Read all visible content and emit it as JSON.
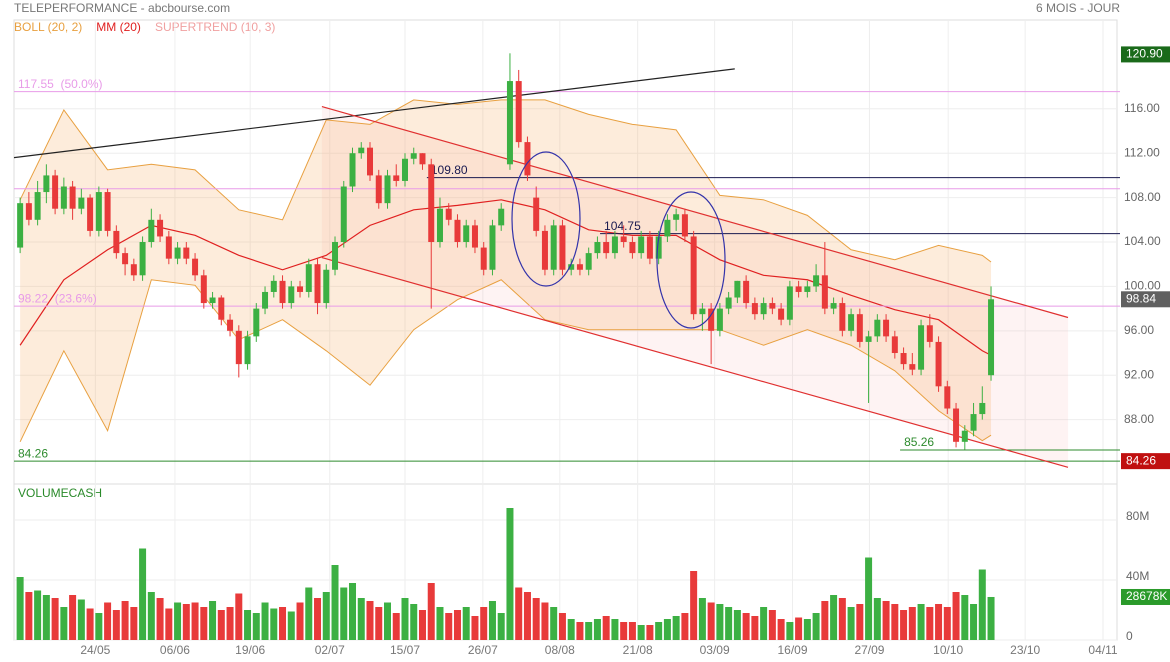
{
  "chart_data": {
    "type": "candlestick",
    "title": "TELEPERFORMANCE - abcbourse.com",
    "subtitle": "6 MOIS - JOUR",
    "indicators": [
      {
        "label": "BOLL (20, 2)",
        "color": "#e8a040"
      },
      {
        "label": "MM (20)",
        "color": "#e02020"
      },
      {
        "label": "SUPERTREND (10, 3)",
        "color": "#f0a0a0"
      }
    ],
    "volume_title": "VOLUMECASH",
    "xlim": [
      -0.7,
      125.4
    ],
    "xticks": [
      {
        "value": 8.6,
        "label": "24/05"
      },
      {
        "value": 17.7,
        "label": "06/06"
      },
      {
        "value": 26.3,
        "label": "19/06"
      },
      {
        "value": 35.4,
        "label": "02/07"
      },
      {
        "value": 44,
        "label": "15/07"
      },
      {
        "value": 52.9,
        "label": "26/07"
      },
      {
        "value": 61.7,
        "label": "08/08"
      },
      {
        "value": 70.6,
        "label": "21/08"
      },
      {
        "value": 79.4,
        "label": "03/09"
      },
      {
        "value": 88.3,
        "label": "16/09"
      },
      {
        "value": 97.1,
        "label": "27/09"
      },
      {
        "value": 106.1,
        "label": "10/10"
      },
      {
        "value": 114.9,
        "label": "23/10"
      },
      {
        "value": 123.8,
        "label": "04/11"
      }
    ],
    "ylim": [
      82.2,
      124
    ],
    "yticks": [
      {
        "value": 88,
        "label": "88.00"
      },
      {
        "value": 92,
        "label": "92.00"
      },
      {
        "value": 96,
        "label": "96.00"
      },
      {
        "value": 100,
        "label": "100.00"
      },
      {
        "value": 104,
        "label": "104.00"
      },
      {
        "value": 108,
        "label": "108.00"
      },
      {
        "value": 112,
        "label": "112.00"
      },
      {
        "value": 116,
        "label": "116.00"
      }
    ],
    "up_color": "#3cb043",
    "down_color": "#e83a3a",
    "ohlc": [
      [
        103.5,
        108,
        103,
        107.5
      ],
      [
        107.5,
        108.5,
        105.5,
        106
      ],
      [
        106,
        109.5,
        105.5,
        108.5
      ],
      [
        108.5,
        111,
        107.5,
        110
      ],
      [
        110,
        110.5,
        106.5,
        107
      ],
      [
        107,
        109.8,
        106.5,
        109
      ],
      [
        109,
        109.5,
        106,
        107
      ],
      [
        107,
        108.8,
        106.5,
        108
      ],
      [
        108,
        108.3,
        104.5,
        105
      ],
      [
        105,
        109,
        104.5,
        108.5
      ],
      [
        108.5,
        108.8,
        104.5,
        105
      ],
      [
        105,
        105.5,
        102.5,
        103
      ],
      [
        103,
        103.5,
        101,
        102
      ],
      [
        102,
        102.5,
        100.5,
        101
      ],
      [
        101,
        104.5,
        100.5,
        104
      ],
      [
        104,
        107,
        103.5,
        106
      ],
      [
        106,
        106.5,
        104,
        104.5
      ],
      [
        104.5,
        105,
        102,
        102.5
      ],
      [
        102.5,
        104,
        102,
        103.5
      ],
      [
        103.5,
        104,
        102,
        102.5
      ],
      [
        102.5,
        103,
        100.5,
        101
      ],
      [
        101,
        101.5,
        98,
        98.5
      ],
      [
        98.5,
        99.5,
        98,
        99
      ],
      [
        99,
        99.2,
        96.5,
        97
      ],
      [
        97,
        97.5,
        95.5,
        96
      ],
      [
        96,
        96.5,
        91.8,
        93
      ],
      [
        93,
        96,
        92.5,
        95.5
      ],
      [
        95.5,
        98.5,
        95,
        98
      ],
      [
        98,
        100,
        97.5,
        99.5
      ],
      [
        99.5,
        101,
        99,
        100.5
      ],
      [
        100.5,
        101,
        98,
        98.5
      ],
      [
        98.5,
        100.5,
        98,
        100
      ],
      [
        100,
        100.5,
        99,
        99.5
      ],
      [
        99.5,
        102.5,
        99,
        102
      ],
      [
        102,
        102.5,
        97.5,
        98.5
      ],
      [
        98.5,
        102,
        98,
        101.5
      ],
      [
        101.5,
        104.5,
        101,
        104
      ],
      [
        104,
        109.5,
        103.5,
        109
      ],
      [
        109,
        112.5,
        108.5,
        112
      ],
      [
        112,
        113,
        111.5,
        112.5
      ],
      [
        112.5,
        113,
        109.5,
        110
      ],
      [
        110,
        110.5,
        107,
        107.5
      ],
      [
        107.5,
        110.5,
        107,
        110
      ],
      [
        110,
        111,
        109,
        109.5
      ],
      [
        109.5,
        112,
        109,
        111.5
      ],
      [
        111.5,
        112.5,
        111,
        112
      ],
      [
        112,
        112,
        110.5,
        111
      ],
      [
        111,
        111.5,
        98,
        104
      ],
      [
        104,
        108,
        103.5,
        107
      ],
      [
        107,
        107.5,
        105.5,
        106
      ],
      [
        106,
        106.5,
        103.5,
        104
      ],
      [
        104,
        106,
        103.5,
        105.5
      ],
      [
        105.5,
        106,
        103,
        103.5
      ],
      [
        103.5,
        104,
        101,
        101.5
      ],
      [
        101.5,
        106,
        101,
        105.5
      ],
      [
        105.5,
        107.5,
        105,
        107
      ],
      [
        111,
        121,
        110.5,
        118.5
      ],
      [
        118.5,
        119.5,
        112.5,
        113
      ],
      [
        113,
        113.5,
        109.5,
        110
      ],
      [
        108,
        109,
        104.5,
        105
      ],
      [
        105,
        105.5,
        101,
        101.5
      ],
      [
        101.5,
        106,
        101,
        105.5
      ],
      [
        105.5,
        106,
        101,
        101.5
      ],
      [
        101.5,
        102.5,
        101,
        102
      ],
      [
        102,
        102.5,
        101,
        101.5
      ],
      [
        101.5,
        103.5,
        101,
        103
      ],
      [
        103,
        104.5,
        102.5,
        104
      ],
      [
        104,
        105,
        102.5,
        103
      ],
      [
        103,
        105,
        102.5,
        104.5
      ],
      [
        104.5,
        105.5,
        103.5,
        104
      ],
      [
        104,
        104.5,
        102.5,
        103
      ],
      [
        103,
        105,
        102.5,
        104.5
      ],
      [
        104.5,
        105,
        102,
        102.5
      ],
      [
        102.5,
        105,
        102,
        104.5
      ],
      [
        104.5,
        106.5,
        104,
        106
      ],
      [
        106,
        107,
        105,
        106.5
      ],
      [
        106.5,
        107,
        104,
        104.5
      ],
      [
        104.5,
        105,
        97,
        97.5
      ],
      [
        97.5,
        98.5,
        96,
        98
      ],
      [
        98,
        98.5,
        93,
        96
      ],
      [
        96,
        98.5,
        95.5,
        98
      ],
      [
        98,
        99.5,
        97.5,
        99
      ],
      [
        99,
        100.5,
        98.5,
        100.5
      ],
      [
        100.5,
        101,
        98,
        98.5
      ],
      [
        98.5,
        99,
        97,
        97.5
      ],
      [
        97.5,
        99,
        97,
        98.5
      ],
      [
        98.5,
        99,
        97.5,
        98
      ],
      [
        98,
        98.5,
        96.5,
        97
      ],
      [
        97,
        100.5,
        96.5,
        100
      ],
      [
        100,
        100.5,
        99,
        99.5
      ],
      [
        99.5,
        100.5,
        99,
        100
      ],
      [
        100,
        102,
        99.5,
        101
      ],
      [
        101,
        104,
        97.5,
        98
      ],
      [
        98,
        99,
        97.5,
        98.5
      ],
      [
        98.5,
        99,
        95.5,
        96
      ],
      [
        96,
        98,
        95.5,
        97.5
      ],
      [
        97.5,
        98,
        94.5,
        95
      ],
      [
        95,
        96,
        89.5,
        95.5
      ],
      [
        95.5,
        97.5,
        95,
        97
      ],
      [
        97,
        97.5,
        95,
        95.5
      ],
      [
        95.5,
        96,
        93.5,
        94
      ],
      [
        94,
        94.5,
        92.5,
        93
      ],
      [
        93,
        94,
        92,
        92.5
      ],
      [
        92.5,
        97,
        92,
        96.5
      ],
      [
        96.5,
        97.5,
        94.5,
        95
      ],
      [
        95,
        95.5,
        90.5,
        91
      ],
      [
        91,
        91.5,
        88.5,
        89
      ],
      [
        89,
        89.5,
        85.5,
        86
      ],
      [
        86,
        87.5,
        85.3,
        87
      ],
      [
        87,
        89.5,
        86.5,
        88.5
      ],
      [
        88.5,
        91,
        88,
        89.5
      ],
      [
        92,
        100,
        91.5,
        98.84
      ]
    ],
    "volume": [
      42,
      32,
      33,
      30,
      28,
      22,
      30,
      27,
      21,
      18,
      25,
      20,
      26,
      22,
      61,
      32,
      28,
      21,
      25,
      24,
      25,
      22,
      26,
      20,
      22,
      31,
      20,
      18,
      25,
      21,
      22,
      19,
      25,
      35,
      28,
      32,
      50,
      35,
      38,
      28,
      26,
      22,
      25,
      18,
      28,
      24,
      20,
      38,
      22,
      18,
      20,
      22,
      16,
      22,
      26,
      18,
      88,
      35,
      32,
      28,
      25,
      22,
      18,
      14,
      12,
      12,
      14,
      16,
      14,
      12,
      12,
      10,
      10,
      12,
      14,
      16,
      18,
      46,
      28,
      25,
      24,
      22,
      20,
      18,
      16,
      22,
      20,
      14,
      12,
      15,
      14,
      18,
      26,
      30,
      28,
      22,
      24,
      55,
      28,
      26,
      24,
      20,
      22,
      24,
      22,
      24,
      22,
      32,
      30,
      24,
      47,
      28.678
    ],
    "volume_ylim": [
      0,
      100
    ],
    "volume_yticks": [
      0,
      {
        "value": 40,
        "label": "40M"
      },
      {
        "value": 80,
        "label": "80M"
      }
    ],
    "volume_badge": {
      "value": 28.678,
      "label": "28678K",
      "color": "#2a9a2a"
    },
    "boll_x": [
      0,
      5,
      10,
      15,
      20,
      25,
      30,
      35,
      40,
      45,
      50,
      55,
      60,
      65,
      70,
      75,
      80,
      85,
      90,
      95,
      100,
      105,
      110,
      111
    ],
    "boll_upper": [
      107.8,
      115.9,
      110.5,
      111,
      110.5,
      106.9,
      106,
      115,
      114.6,
      116.8,
      116.4,
      116.8,
      116.8,
      115.5,
      114.6,
      114.1,
      108.2,
      107.8,
      106.4,
      103.3,
      102.4,
      103.7,
      102.8,
      102.2
    ],
    "boll_lower": [
      86,
      94.2,
      87,
      100.6,
      100.1,
      95.2,
      97,
      94.2,
      91.1,
      96.1,
      98.8,
      100.6,
      97,
      96.1,
      96.1,
      96.1,
      96.1,
      94.7,
      96.1,
      94.7,
      92.4,
      88.8,
      86.1,
      86.6
    ],
    "mm20": [
      94.7,
      100.6,
      103.3,
      105.5,
      104.6,
      102.8,
      101.5,
      102.8,
      105.5,
      106.9,
      107.3,
      107.8,
      106.9,
      105.1,
      104.6,
      104.6,
      102.4,
      101,
      100.6,
      99.2,
      97.9,
      97,
      94.2,
      93.8
    ],
    "trendlines": [
      {
        "x": [
          -0.7,
          81.7
        ],
        "y": [
          111.6,
          119.6
        ],
        "color": "#222222"
      },
      {
        "x": [
          34.5,
          119.8
        ],
        "y": [
          116.2,
          97.2
        ],
        "color": "#e03030"
      },
      {
        "x": [
          34.5,
          119.8
        ],
        "y": [
          102.6,
          83.7
        ],
        "color": "#e03030"
      }
    ],
    "levels": [
      {
        "value": 117.55,
        "label": "117.55  (50.0%)",
        "color": "#e89be8",
        "start": -0.7
      },
      {
        "value": 108.8,
        "color": "#e89be8",
        "start": -0.7
      },
      {
        "value": 98.22,
        "label": "98.22  (23.6%)",
        "color": "#e89be8",
        "start": -0.7
      },
      {
        "value": 109.8,
        "label": "109.80",
        "color": "#1a1a50",
        "start": 46.5
      },
      {
        "value": 104.75,
        "label": "104.75",
        "color": "#1a1a50",
        "start": 66.3
      },
      {
        "value": 84.26,
        "label": "84.26",
        "color": "#2e8b2e",
        "start": -0.7
      },
      {
        "value": 85.26,
        "label": "85.26",
        "color": "#2e8b2e",
        "start": 100.6
      }
    ],
    "price_badges": [
      {
        "value": 120.9,
        "label": "120.90",
        "color": "#1a6a1a"
      },
      {
        "value": 98.84,
        "label": "98.84",
        "color": "#606060"
      },
      {
        "value": 84.26,
        "label": "84.26",
        "color": "#c01010"
      }
    ]
  }
}
